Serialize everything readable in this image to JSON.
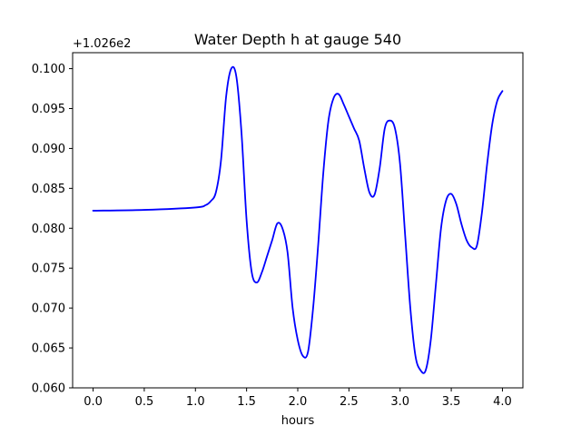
{
  "chart_data": {
    "type": "line",
    "title": "Water Depth h at gauge 540",
    "xlabel": "hours",
    "ylabel": "",
    "offset_label": "+1.026e2",
    "xlim": [
      -0.2,
      4.2
    ],
    "ylim": [
      0.06,
      0.102
    ],
    "xticks": [
      0.0,
      0.5,
      1.0,
      1.5,
      2.0,
      2.5,
      3.0,
      3.5,
      4.0
    ],
    "xtick_labels": [
      "0.0",
      "0.5",
      "1.0",
      "1.5",
      "2.0",
      "2.5",
      "3.0",
      "3.5",
      "4.0"
    ],
    "yticks": [
      0.06,
      0.065,
      0.07,
      0.075,
      0.08,
      0.085,
      0.09,
      0.095,
      0.1
    ],
    "ytick_labels": [
      "0.060",
      "0.065",
      "0.070",
      "0.075",
      "0.080",
      "0.085",
      "0.090",
      "0.095",
      "0.100"
    ],
    "grid": false,
    "series": [
      {
        "color": "#0000ff",
        "x": [
          0.0,
          0.5,
          1.0,
          1.1,
          1.15,
          1.2,
          1.25,
          1.3,
          1.35,
          1.4,
          1.45,
          1.5,
          1.55,
          1.6,
          1.65,
          1.7,
          1.75,
          1.8,
          1.85,
          1.9,
          1.95,
          2.0,
          2.05,
          2.1,
          2.15,
          2.2,
          2.25,
          2.3,
          2.35,
          2.4,
          2.45,
          2.5,
          2.55,
          2.6,
          2.65,
          2.7,
          2.75,
          2.8,
          2.85,
          2.9,
          2.95,
          3.0,
          3.05,
          3.1,
          3.15,
          3.2,
          3.25,
          3.3,
          3.35,
          3.4,
          3.45,
          3.5,
          3.55,
          3.6,
          3.65,
          3.7,
          3.75,
          3.8,
          3.85,
          3.9,
          3.95,
          4.0
        ],
        "y": [
          0.0822,
          0.0823,
          0.0826,
          0.0829,
          0.0834,
          0.0845,
          0.0885,
          0.0965,
          0.1,
          0.099,
          0.092,
          0.081,
          0.0745,
          0.0732,
          0.0745,
          0.0765,
          0.0785,
          0.0806,
          0.08,
          0.077,
          0.07,
          0.066,
          0.064,
          0.0645,
          0.07,
          0.078,
          0.087,
          0.0935,
          0.0963,
          0.0968,
          0.0955,
          0.094,
          0.0925,
          0.091,
          0.0875,
          0.0845,
          0.0842,
          0.0875,
          0.0925,
          0.0935,
          0.0925,
          0.088,
          0.079,
          0.07,
          0.064,
          0.0622,
          0.0622,
          0.066,
          0.073,
          0.08,
          0.0835,
          0.0843,
          0.083,
          0.0805,
          0.0785,
          0.0776,
          0.0778,
          0.082,
          0.088,
          0.093,
          0.096,
          0.0972
        ]
      }
    ]
  }
}
